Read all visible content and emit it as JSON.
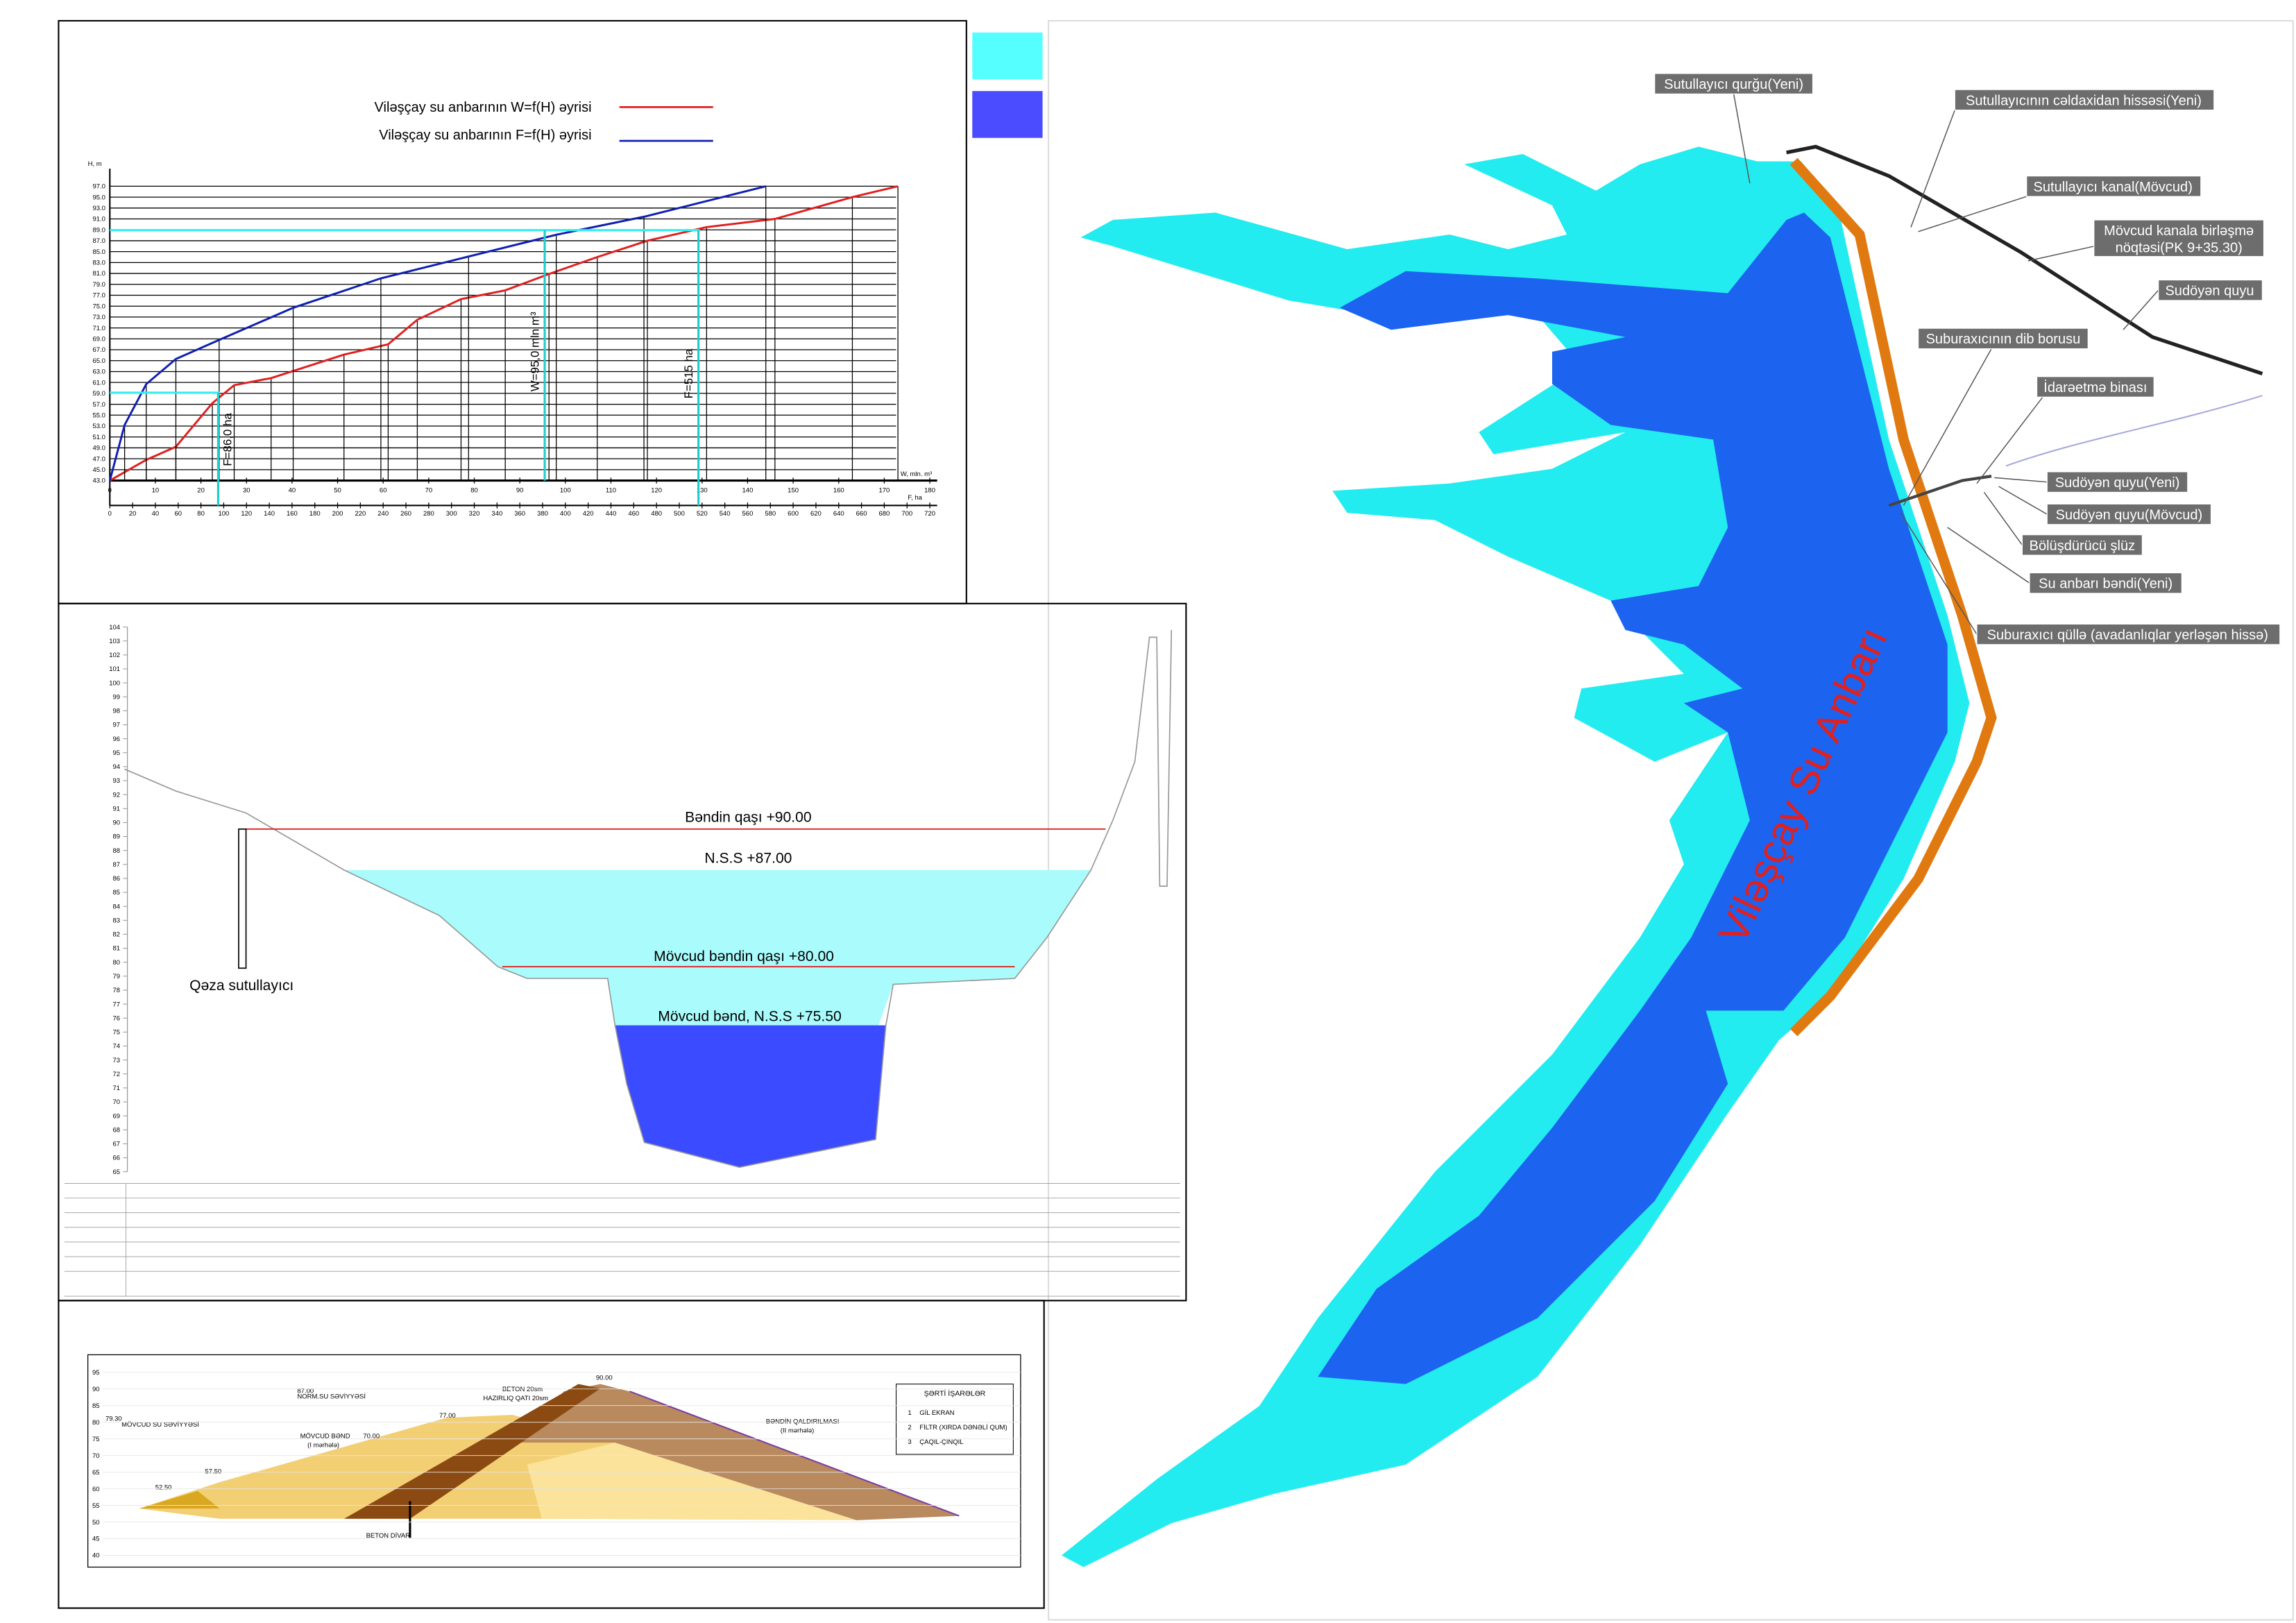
{
  "h_chart": {
    "legend": [
      "Viləşçay su anbarının W=f(H) əyrisi",
      "Viləşçay su anbarının F=f(H) əyrisi"
    ],
    "h_axis_label": "H, m",
    "w_axis_label": "W, mln. m³",
    "f_axis_label": "F, ha",
    "h_ticks": [
      {
        "value": 43,
        "label": "43.0"
      },
      {
        "value": 45,
        "label": "45.0"
      },
      {
        "value": 47,
        "label": "47.0"
      },
      {
        "value": 49,
        "label": "49.0"
      },
      {
        "value": 51,
        "label": "51.0"
      },
      {
        "value": 53,
        "label": "53.0"
      },
      {
        "value": 55,
        "label": "55.0"
      },
      {
        "value": 57,
        "label": "57.0"
      },
      {
        "value": 59,
        "label": "59.0"
      },
      {
        "value": 61,
        "label": "61.0"
      },
      {
        "value": 63,
        "label": "63.0"
      },
      {
        "value": 65,
        "label": "65.0"
      },
      {
        "value": 67,
        "label": "67.0"
      },
      {
        "value": 69,
        "label": "69.0"
      },
      {
        "value": 71,
        "label": "71.0"
      },
      {
        "value": 73,
        "label": "73.0"
      },
      {
        "value": 75,
        "label": "75.0"
      },
      {
        "value": 77,
        "label": "77.0"
      },
      {
        "value": 79,
        "label": "79.0"
      },
      {
        "value": 81,
        "label": "81.0"
      },
      {
        "value": 83,
        "label": "83.0"
      },
      {
        "value": 85,
        "label": "85.0"
      },
      {
        "value": 87,
        "label": "87.0"
      },
      {
        "value": 89,
        "label": "89.0"
      },
      {
        "value": 91,
        "label": "91.0"
      },
      {
        "value": 93,
        "label": "93.0"
      },
      {
        "value": 95,
        "label": "95.0"
      },
      {
        "value": 97,
        "label": "97.0"
      }
    ],
    "w_ticks": [
      0,
      10,
      20,
      30,
      40,
      50,
      60,
      70,
      80,
      90,
      100,
      110,
      120,
      130,
      140,
      150,
      160,
      170,
      180
    ],
    "f_ticks": [
      0,
      20,
      40,
      60,
      80,
      100,
      120,
      140,
      160,
      180,
      200,
      220,
      240,
      260,
      280,
      300,
      320,
      340,
      360,
      380,
      400,
      420,
      440,
      460,
      480,
      500,
      520,
      540,
      560,
      580,
      600,
      620,
      640,
      660,
      680,
      700,
      720
    ],
    "w_curve": {
      "h": [
        43,
        46.8,
        49.2,
        57.2,
        60.5,
        61.8,
        66.1,
        68,
        72.5,
        76.3,
        77.9,
        80.9,
        84,
        87,
        89.5,
        91,
        95,
        97
      ],
      "w": [
        0,
        8,
        14.5,
        22.5,
        27.3,
        35.4,
        51.4,
        61.1,
        67.5,
        77.1,
        86.8,
        96.4,
        107,
        118,
        131,
        146,
        163,
        173
      ]
    },
    "f_curve": {
      "h": [
        43,
        53.2,
        60.7,
        65.3,
        68.8,
        74.7,
        80.1,
        84.1,
        88.1,
        91.4,
        97
      ],
      "f": [
        0,
        13,
        32,
        58,
        96,
        161,
        238,
        315,
        392,
        469,
        576
      ]
    },
    "annotations": [
      "W=95,0 mln m³",
      "F=515 ha",
      "F=86,0 ha"
    ]
  },
  "profile": {
    "y_ticks": [
      65,
      66,
      67,
      68,
      69,
      70,
      71,
      72,
      73,
      74,
      75,
      76,
      77,
      78,
      79,
      80,
      81,
      82,
      83,
      84,
      85,
      86,
      87,
      88,
      89,
      90,
      91,
      92,
      93,
      94,
      95,
      96,
      97,
      98,
      99,
      100,
      101,
      102,
      103,
      104
    ],
    "labels": [
      "Bəndin qaşı +90.00",
      "N.S.S +87.00",
      "Mövcud bəndin qaşı +80.00",
      "Mövcud bənd, N.S.S +75.50",
      "Qəza sutullayıcı"
    ]
  },
  "section": {
    "y_ticks": [
      40,
      45,
      50,
      55,
      60,
      65,
      70,
      75,
      80,
      85,
      90,
      95
    ],
    "legend_title": "ŞƏRTİ İŞARƏLƏR",
    "legend_items": [
      {
        "num": "1",
        "text": "GİL EKRAN"
      },
      {
        "num": "2",
        "text": "FİLTR (XIRDA DƏNƏLİ QUM)"
      },
      {
        "num": "3",
        "text": "ÇAQIL-ÇINQIL"
      }
    ],
    "labels": [
      "NORM.SU SƏVİYYƏSİ",
      "MÖVCUD SU SƏVİYYƏSİ",
      "MÖVCUD BƏND",
      "(I mərhələ)",
      "BƏNDİN QALDIRILMASI",
      "(II mərhələ)",
      "BETON DİVAR",
      "BETON 20sm",
      "HAZIRLIQ QATI 20sm",
      "87.00",
      "79.30",
      "90.00",
      "77.00",
      "70.00",
      "57.50",
      "52.50"
    ]
  },
  "map": {
    "title": "Viləşçay  Su  Anbarı",
    "labels": [
      "Sutullayıcı qurğu(Yeni)",
      "Sutullayıcının cəldaxidan hissəsi(Yeni)",
      "Sutullayıcı kanal(Mövcud)",
      "Mövcud kanala birləşmə",
      "nöqtəsi(PK 9+35.30)",
      "Sudöyən quyu",
      "Suburaxıcının dib borusu",
      "İdarəetmə binası",
      "Sudöyən quyu(Yeni)",
      "Sudöyən quyu(Mövcud)",
      "Bölüşdürücü şlüz",
      "Su anbarı bəndi(Yeni)",
      "Suburaxıcı qüllə (avadanlıqlar yerləşən hissə)"
    ]
  }
}
